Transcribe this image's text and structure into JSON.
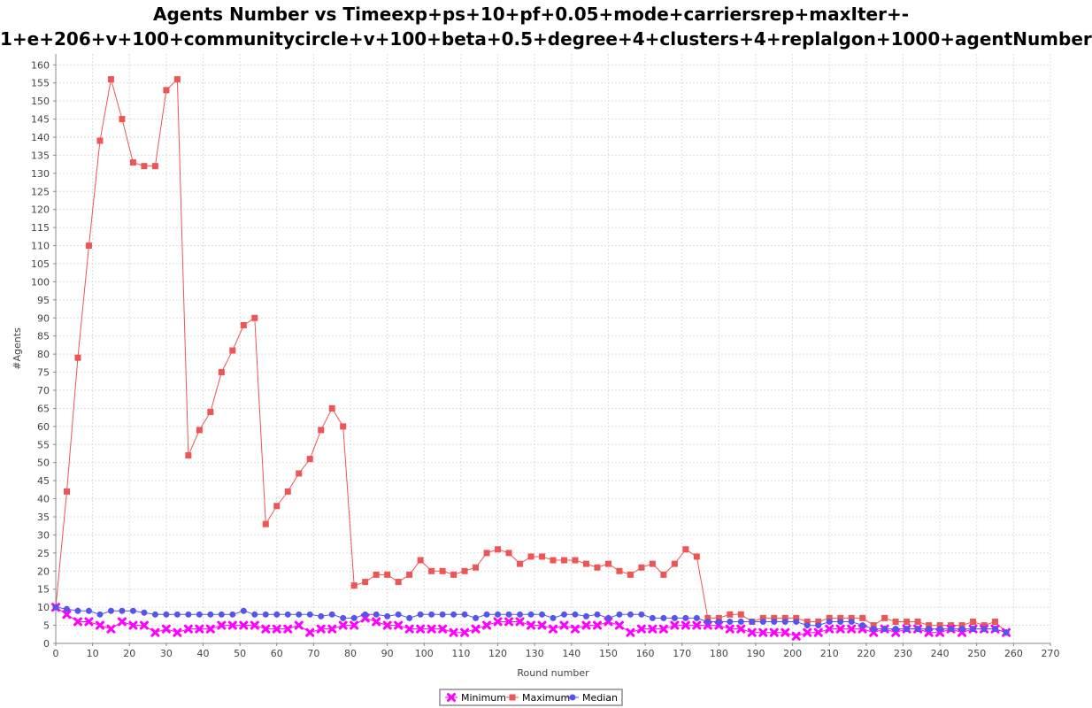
{
  "chart_data": {
    "type": "line",
    "title_lines": [
      "Agents Number vs Timeexp+ps+10+pf+0.05+mode+carriersrep+maxIter+-",
      "1+e+206+v+100+communitycircle+v+100+beta+0.5+degree+4+clusters+4+replalgon+1000+agentNumber"
    ],
    "xlabel": "Round number",
    "ylabel": "#Agents",
    "xlim": [
      0,
      270
    ],
    "ylim": [
      0,
      163
    ],
    "xticks": [
      0,
      10,
      20,
      30,
      40,
      50,
      60,
      70,
      80,
      90,
      100,
      110,
      120,
      130,
      140,
      150,
      160,
      170,
      180,
      190,
      200,
      210,
      220,
      230,
      240,
      250,
      260,
      270
    ],
    "yticks": [
      0,
      5,
      10,
      15,
      20,
      25,
      30,
      35,
      40,
      45,
      50,
      55,
      60,
      65,
      70,
      75,
      80,
      85,
      90,
      95,
      100,
      105,
      110,
      115,
      120,
      125,
      130,
      135,
      140,
      145,
      150,
      155,
      160
    ],
    "grid": true,
    "legend_position": "bottom-center",
    "x": [
      0,
      3,
      6,
      9,
      12,
      15,
      18,
      21,
      24,
      27,
      30,
      33,
      36,
      39,
      42,
      45,
      48,
      51,
      54,
      57,
      60,
      63,
      66,
      69,
      72,
      75,
      78,
      81,
      84,
      87,
      90,
      93,
      96,
      99,
      102,
      105,
      108,
      111,
      114,
      117,
      120,
      123,
      126,
      129,
      132,
      135,
      138,
      141,
      144,
      147,
      150,
      153,
      156,
      159,
      162,
      165,
      168,
      171,
      174,
      177,
      180,
      183,
      186,
      189,
      192,
      195,
      198,
      201,
      204,
      207,
      210,
      213,
      216,
      219,
      222,
      225,
      228,
      231,
      234,
      237,
      240,
      243,
      246,
      249,
      252,
      255,
      258
    ],
    "series": [
      {
        "name": "Minimum",
        "color": "#ff00ff",
        "marker": "x",
        "values": [
          10,
          8,
          6,
          6,
          5,
          4,
          6,
          5,
          5,
          3,
          4,
          3,
          4,
          4,
          4,
          5,
          5,
          5,
          5,
          4,
          4,
          4,
          5,
          3,
          4,
          4,
          5,
          5,
          7,
          6,
          5,
          5,
          4,
          4,
          4,
          4,
          3,
          3,
          4,
          5,
          6,
          6,
          6,
          5,
          5,
          4,
          5,
          4,
          5,
          5,
          6,
          5,
          3,
          4,
          4,
          4,
          5,
          5,
          5,
          5,
          5,
          4,
          4,
          3,
          3,
          3,
          3,
          2,
          3,
          3,
          4,
          4,
          4,
          4,
          3,
          4,
          3,
          4,
          4,
          3,
          3,
          4,
          3,
          4,
          4,
          4,
          3
        ]
      },
      {
        "name": "Maximum",
        "color": "#ee5555",
        "marker": "square",
        "values": [
          10,
          42,
          79,
          110,
          139,
          156,
          145,
          133,
          132,
          132,
          153,
          156,
          52,
          59,
          64,
          75,
          81,
          88,
          90,
          33,
          38,
          42,
          47,
          51,
          59,
          65,
          60,
          16,
          17,
          19,
          19,
          17,
          19,
          23,
          20,
          20,
          19,
          20,
          21,
          25,
          26,
          25,
          22,
          24,
          24,
          23,
          23,
          23,
          22,
          21,
          22,
          20,
          19,
          21,
          22,
          19,
          22,
          26,
          24,
          7,
          7,
          8,
          8,
          6,
          7,
          7,
          7,
          7,
          6,
          6,
          7,
          7,
          7,
          7,
          5,
          7,
          6,
          6,
          6,
          5,
          5,
          5,
          5,
          6,
          5,
          6,
          3
        ]
      },
      {
        "name": "Median",
        "color": "#5555ee",
        "marker": "circle",
        "values": [
          10,
          9.5,
          9,
          9,
          8,
          9,
          9,
          9,
          8.5,
          8,
          8,
          8,
          8,
          8,
          8,
          8,
          8,
          9,
          8,
          8,
          8,
          8,
          8,
          8,
          7.5,
          8,
          7,
          7,
          8,
          8,
          7.5,
          8,
          7,
          8,
          8,
          8,
          8,
          8,
          7,
          8,
          8,
          8,
          8,
          8,
          8,
          7,
          8,
          8,
          7.5,
          8,
          7,
          8,
          8,
          8,
          7,
          7,
          7,
          7,
          7,
          6,
          6,
          6,
          6,
          6,
          6,
          6,
          6,
          6,
          5,
          5,
          6,
          6,
          6,
          5,
          4,
          4,
          4,
          4,
          4,
          4,
          4,
          4,
          4,
          4,
          4,
          4,
          3
        ]
      }
    ]
  }
}
